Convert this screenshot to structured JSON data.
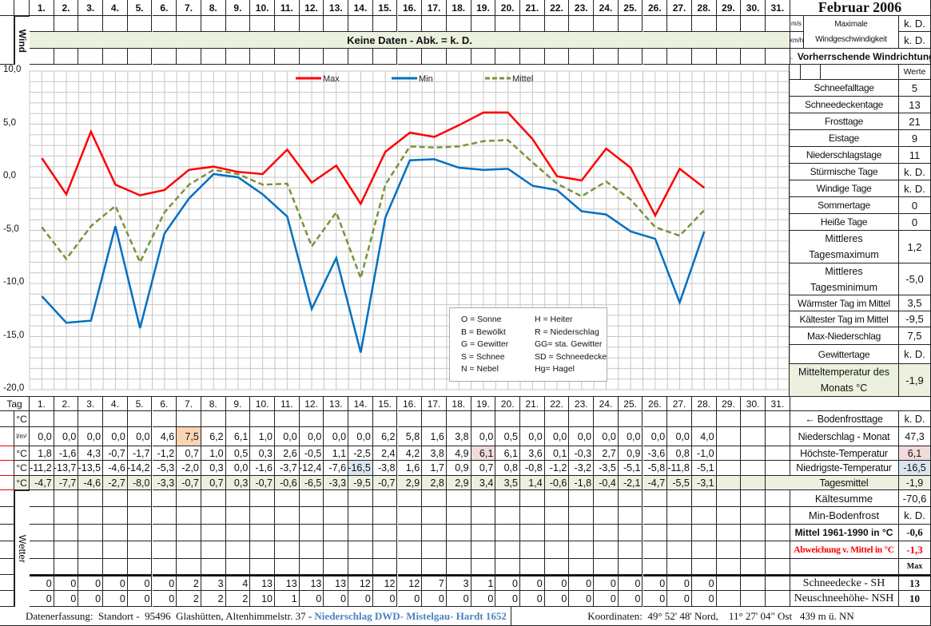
{
  "title": "Februar 2006",
  "days": [
    "1.",
    "2.",
    "3.",
    "4.",
    "5.",
    "6.",
    "7.",
    "8.",
    "9.",
    "10.",
    "11.",
    "12.",
    "13.",
    "14.",
    "15.",
    "16.",
    "17.",
    "18.",
    "19.",
    "20.",
    "21.",
    "22.",
    "23.",
    "24.",
    "25.",
    "26.",
    "27.",
    "28.",
    "29.",
    "30.",
    "31."
  ],
  "wind": {
    "label": "Wind",
    "no_data": "Keine Daten - Abk. = k. D.",
    "unit_ms": "m/s",
    "unit_kmh": "km/h",
    "max_label": "Maximale Windgeschwindigkeit",
    "value_ms": "k. D.",
    "value_kmh": "k. D.",
    "direction_label": "← Vorherrschende Windrichtung"
  },
  "chart_data": {
    "type": "line",
    "x": [
      1,
      2,
      3,
      4,
      5,
      6,
      7,
      8,
      9,
      10,
      11,
      12,
      13,
      14,
      15,
      16,
      17,
      18,
      19,
      20,
      21,
      22,
      23,
      24,
      25,
      26,
      27,
      28
    ],
    "ylim": [
      -20,
      10
    ],
    "yticks": [
      "10,0",
      "5,0",
      "0,0",
      "-5,0",
      "-10,0",
      "-15,0",
      "-20,0"
    ],
    "grid": true,
    "legend_position": "top",
    "series": [
      {
        "name": "Max",
        "color": "#ff0000",
        "dash": false,
        "values": [
          1.8,
          -1.6,
          4.3,
          -0.7,
          -1.7,
          -1.2,
          0.7,
          1.0,
          0.5,
          0.3,
          2.6,
          -0.5,
          1.1,
          -2.5,
          2.4,
          4.2,
          3.8,
          4.9,
          6.1,
          6.1,
          3.6,
          0.1,
          -0.3,
          2.7,
          0.9,
          -3.6,
          0.8,
          -1.0
        ]
      },
      {
        "name": "Min",
        "color": "#0070c0",
        "dash": false,
        "values": [
          -11.2,
          -13.7,
          -13.5,
          -4.6,
          -14.2,
          -5.3,
          -2.0,
          0.3,
          0.0,
          -1.6,
          -3.7,
          -12.4,
          -7.6,
          -16.5,
          -3.8,
          1.6,
          1.7,
          0.9,
          0.7,
          0.8,
          -0.8,
          -1.2,
          -3.2,
          -3.5,
          -5.1,
          -5.8,
          -11.8,
          -5.1
        ]
      },
      {
        "name": "Mittel",
        "color": "#77933c",
        "dash": true,
        "values": [
          -4.7,
          -7.7,
          -4.6,
          -2.7,
          -8.0,
          -3.3,
          -0.7,
          0.7,
          0.3,
          -0.7,
          -0.6,
          -6.5,
          -3.3,
          -9.5,
          -0.7,
          2.9,
          2.8,
          2.9,
          3.4,
          3.5,
          1.4,
          -0.6,
          -1.8,
          -0.4,
          -2.1,
          -4.7,
          -5.5,
          -3.1
        ]
      }
    ]
  },
  "legend_box": [
    [
      "O = Sonne",
      "H = Heiter"
    ],
    [
      "B = Bewölkt",
      "R = Niederschlag"
    ],
    [
      "G = Gewitter",
      "GG= sta. Gewitter"
    ],
    [
      "S = Schnee",
      "SD = Schneedecke"
    ],
    [
      "N = Nebel",
      "Hg= Hagel"
    ]
  ],
  "table": {
    "tag_label": "Tag",
    "rows": [
      {
        "unit": "°C",
        "values": []
      },
      {
        "unit": "l/m²",
        "values": [
          "0,0",
          "0,0",
          "0,0",
          "0,0",
          "0,0",
          "4,6",
          "7,5",
          "6,2",
          "6,1",
          "1,0",
          "0,0",
          "0,0",
          "0,0",
          "0,0",
          "6,2",
          "5,8",
          "1,6",
          "3,8",
          "0,0",
          "0,5",
          "0,0",
          "0,0",
          "0,0",
          "0,0",
          "0,0",
          "0,0",
          "0,0",
          "4,0"
        ],
        "highlight": {
          "7": "orange"
        }
      },
      {
        "unit": "°C",
        "values": [
          "1,8",
          "-1,6",
          "4,3",
          "-0,7",
          "-1,7",
          "-1,2",
          "0,7",
          "1,0",
          "0,5",
          "0,3",
          "2,6",
          "-0,5",
          "1,1",
          "-2,5",
          "2,4",
          "4,2",
          "3,8",
          "4,9",
          "6,1",
          "6,1",
          "3,6",
          "0,1",
          "-0,3",
          "2,7",
          "0,9",
          "-3,6",
          "0,8",
          "-1,0"
        ],
        "highlight": {
          "19": "pink"
        }
      },
      {
        "unit": "°C",
        "values": [
          "-11,2",
          "-13,7",
          "-13,5",
          "-4,6",
          "-14,2",
          "-5,3",
          "-2,0",
          "0,3",
          "0,0",
          "-1,6",
          "-3,7",
          "-12,4",
          "-7,6",
          "-16,5",
          "-3,8",
          "1,6",
          "1,7",
          "0,9",
          "0,7",
          "0,8",
          "-0,8",
          "-1,2",
          "-3,2",
          "-3,5",
          "-5,1",
          "-5,8",
          "-11,8",
          "-5,1"
        ],
        "highlight": {
          "14": "blue"
        }
      },
      {
        "unit": "°C",
        "values": [
          "-4,7",
          "-7,7",
          "-4,6",
          "-2,7",
          "-8,0",
          "-3,3",
          "-0,7",
          "0,7",
          "0,3",
          "-0,7",
          "-0,6",
          "-6,5",
          "-3,3",
          "-9,5",
          "-0,7",
          "2,9",
          "2,8",
          "2,9",
          "3,4",
          "3,5",
          "1,4",
          "-0,6",
          "-1,8",
          "-0,4",
          "-2,1",
          "-4,7",
          "-5,5",
          "-3,1"
        ],
        "row_color": "green"
      }
    ],
    "wetter_label": "Wetter",
    "snow_rows": [
      {
        "values": [
          "0",
          "0",
          "0",
          "0",
          "0",
          "0",
          "2",
          "3",
          "4",
          "13",
          "13",
          "13",
          "13",
          "12",
          "12",
          "12",
          "7",
          "3",
          "1",
          "0",
          "0",
          "0",
          "0",
          "0",
          "0",
          "0",
          "0",
          "0"
        ]
      },
      {
        "values": [
          "0",
          "0",
          "0",
          "0",
          "0",
          "0",
          "2",
          "2",
          "2",
          "10",
          "1",
          "0",
          "0",
          "0",
          "0",
          "0",
          "0",
          "0",
          "0",
          "0",
          "0",
          "0",
          "0",
          "0",
          "0",
          "0",
          "0",
          "0"
        ]
      }
    ]
  },
  "stats": {
    "werte_label": "Werte",
    "items": [
      {
        "label": "Schneefalltage",
        "value": "5"
      },
      {
        "label": "Schneedeckentage",
        "value": "13"
      },
      {
        "label": "Frosttage",
        "value": "21"
      },
      {
        "label": "Eistage",
        "value": "9"
      },
      {
        "label": "Niederschlagstage",
        "value": "11"
      },
      {
        "label": "Stürmische Tage",
        "value": "k. D."
      },
      {
        "label": "Windige Tage",
        "value": "k. D."
      },
      {
        "label": "Sommertage",
        "value": "0"
      },
      {
        "label": "Heiße Tage",
        "value": "0"
      },
      {
        "label": "Mittleres Tagesmaximum",
        "value": "1,2"
      },
      {
        "label": "Mittleres Tagesminimum",
        "value": "-5,0"
      },
      {
        "label": "Wärmster Tag im Mittel",
        "value": "3,5"
      },
      {
        "label": "Kältester Tag im Mittel",
        "value": "-9,5"
      },
      {
        "label": "Max-Niederschlag",
        "value": "7,5"
      },
      {
        "label": "Gewittertage",
        "value": "k. D."
      },
      {
        "label": "Mitteltemperatur des Monats °C",
        "value": "-1,9"
      }
    ],
    "lower": [
      {
        "label": "← Bodenfrosttage",
        "value": "k. D."
      },
      {
        "label": "Niederschlag - Monat",
        "value": "47,3"
      },
      {
        "label": "Höchste-Temperatur",
        "value": "6,1"
      },
      {
        "label": "Niedrigste-Temperatur",
        "value": "-16,5"
      },
      {
        "label": "Tagesmittel",
        "value": "-1,9"
      },
      {
        "label": "Kältesumme",
        "value": "-70,6"
      },
      {
        "label": "Min-Bodenfrost",
        "value": "k. D."
      },
      {
        "label": "Mittel 1961-1990 in °C",
        "value": "-0,6"
      },
      {
        "label": "Abweichung v. Mittel in °C",
        "value": "-1,3"
      },
      {
        "label": "",
        "value": "Max"
      },
      {
        "label": "Schneedecke -   SH",
        "value": "13"
      },
      {
        "label": "Neuschneehöhe- NSH",
        "value": "10"
      }
    ]
  },
  "footer": {
    "left": "Datenerfassung:  Standort -  95496  Glashütten, Altenhimmelstr. 37 - ",
    "left_highlight": "Niederschlag DWD- Mistelgau- Hardt 1652",
    "right": "Koordinaten:  49° 52' 48' Nord,    11° 27' 04\" Ost   439 m ü. NN"
  },
  "colors": {
    "green": "#ebf1de",
    "orange": "#fbd4b4",
    "pink": "#f2dcdb",
    "blue": "#dbe5f1",
    "footer_blue": "#4f81bd",
    "abweichung_red": "#ff0000"
  }
}
